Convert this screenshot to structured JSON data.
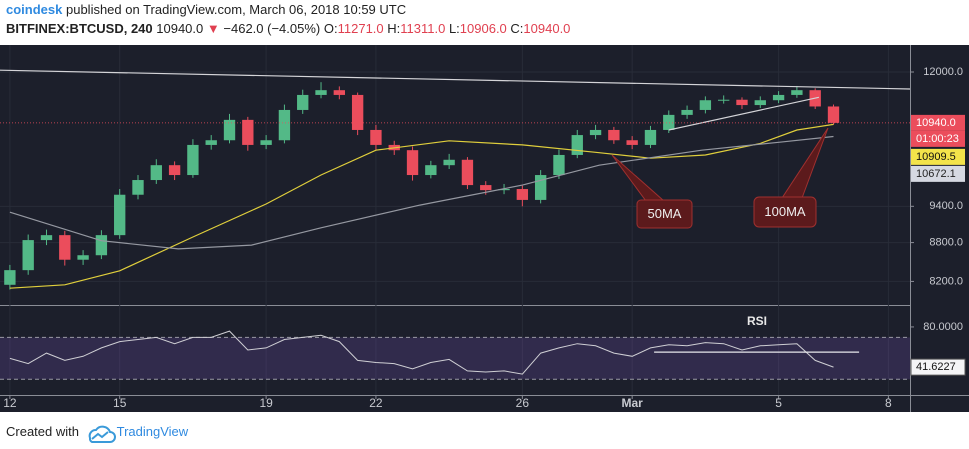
{
  "header": {
    "author": "coindesk",
    "published": "published on TradingView.com, March 06, 2018 10:59 UTC",
    "symbol": "BITFINEX:BTCUSD, 240",
    "last": "10940.0",
    "arrow": "▼",
    "change": "−462.0 (−4.05%)",
    "ohlc": [
      {
        "label": "O:",
        "value": "11271.0"
      },
      {
        "label": "H:",
        "value": "11311.0"
      },
      {
        "label": "L:",
        "value": "10906.0"
      },
      {
        "label": "C:",
        "value": "10940.0"
      }
    ]
  },
  "footer": {
    "created": "Created with",
    "brand": "TradingView"
  },
  "chart_data": [
    {
      "type": "candlestick",
      "x": [
        0,
        0.5,
        1,
        1.5,
        2,
        2.5,
        3,
        3.5,
        4,
        4.5,
        5,
        5.5,
        6,
        6.5,
        7,
        7.5,
        8,
        8.5,
        9,
        9.5,
        10,
        10.5,
        11,
        11.5,
        12,
        12.5,
        13,
        13.5,
        14,
        14.5,
        15,
        15.5,
        16,
        16.5,
        17,
        17.5,
        18,
        18.5,
        19,
        19.5,
        20,
        20.5,
        21,
        21.5,
        22,
        22.5
      ],
      "open": [
        8150,
        8370,
        8840,
        8920,
        8530,
        8600,
        8920,
        9600,
        9860,
        10130,
        9950,
        10510,
        10600,
        11000,
        10510,
        10600,
        11200,
        11510,
        11610,
        11510,
        10800,
        10510,
        10410,
        9950,
        10130,
        10230,
        9770,
        9680,
        9700,
        9510,
        9950,
        10320,
        10700,
        10800,
        10600,
        10510,
        10800,
        11100,
        11200,
        11400,
        11410,
        11300,
        11400,
        11510,
        11610,
        11271
      ],
      "high": [
        8450,
        8930,
        9010,
        8990,
        8680,
        9000,
        9700,
        9950,
        10240,
        10200,
        10620,
        10700,
        11120,
        11060,
        10700,
        11310,
        11620,
        11780,
        11690,
        11560,
        10900,
        10590,
        10480,
        10210,
        10340,
        10280,
        9840,
        9790,
        9760,
        10040,
        10420,
        10800,
        10900,
        10860,
        10680,
        10880,
        11190,
        11290,
        11480,
        11500,
        11460,
        11480,
        11590,
        11700,
        11650,
        11311
      ],
      "low": [
        8080,
        8300,
        8760,
        8440,
        8450,
        8540,
        8860,
        9520,
        9790,
        9860,
        9900,
        10420,
        10540,
        10400,
        10430,
        10540,
        11120,
        11440,
        11420,
        10700,
        10420,
        10320,
        9850,
        9890,
        10060,
        9700,
        9600,
        9610,
        9400,
        9450,
        9880,
        10260,
        10620,
        10530,
        10430,
        10450,
        10740,
        11020,
        11130,
        11330,
        11220,
        11240,
        11340,
        11450,
        11220,
        10906
      ],
      "close": [
        8370,
        8840,
        8920,
        8530,
        8600,
        8920,
        9600,
        9860,
        10130,
        9950,
        10510,
        10600,
        11000,
        10510,
        10600,
        11200,
        11510,
        11610,
        11510,
        10800,
        10510,
        10410,
        9950,
        10130,
        10230,
        9770,
        9680,
        9700,
        9510,
        9950,
        10320,
        10700,
        10800,
        10600,
        10510,
        10800,
        11100,
        11200,
        11400,
        11410,
        11300,
        11400,
        11510,
        11610,
        11271,
        10940
      ],
      "up_color": "#53b987",
      "down_color": "#eb4d5c",
      "xlim": [
        -0.27,
        24.59
      ],
      "ylim": [
        7856,
        12604
      ],
      "log_scale": true,
      "yticks": [
        {
          "value": 8200,
          "label": "8200.0"
        },
        {
          "value": 8800,
          "label": "8800.0"
        },
        {
          "value": 9400,
          "label": "9400.0"
        },
        {
          "value": 12000,
          "label": "12000.0"
        }
      ],
      "series": [
        {
          "name": "50MA",
          "color": "#e0cf3c",
          "x": [
            0,
            1.5,
            3,
            5,
            7,
            8.5,
            10,
            12,
            14,
            16,
            17.5,
            19,
            20.5,
            21.5,
            22.5
          ],
          "values": [
            8100,
            8150,
            8360,
            8890,
            9440,
            9950,
            10410,
            10590,
            10510,
            10370,
            10260,
            10320,
            10540,
            10800,
            10909.5
          ]
        },
        {
          "name": "100MA",
          "color": "#9598a1",
          "x": [
            0,
            2.5,
            4.6,
            6.6,
            8.5,
            11.2,
            14,
            16.1,
            18.9,
            21,
            22.5
          ],
          "values": [
            9300,
            8830,
            8700,
            8760,
            9040,
            9420,
            9770,
            10130,
            10410,
            10560,
            10672.1
          ]
        }
      ],
      "trendlines": [
        {
          "x": [
            -0.27,
            24.59
          ],
          "values": [
            12040,
            11635
          ]
        },
        {
          "x": [
            18.0,
            22.1
          ],
          "values": [
            10800,
            11460
          ]
        }
      ],
      "last_price": {
        "value": 10940,
        "label": "10940.0"
      },
      "countdown": "01:00:23"
    },
    {
      "type": "line",
      "title": "RSI",
      "x": [
        0,
        0.5,
        1,
        1.5,
        2,
        2.5,
        3,
        3.5,
        4,
        4.5,
        5,
        5.5,
        6,
        6.5,
        7,
        7.5,
        8,
        8.5,
        9,
        9.5,
        10,
        10.5,
        11,
        11.5,
        12,
        12.5,
        13,
        13.5,
        14,
        14.5,
        15,
        15.5,
        16,
        16.5,
        17,
        17.5,
        18,
        18.5,
        19,
        19.5,
        20,
        20.5,
        21,
        21.5,
        22,
        22.5
      ],
      "values": [
        50,
        45,
        55,
        48,
        52,
        60,
        66,
        68,
        70,
        64,
        70,
        70,
        76,
        58,
        60,
        68,
        70,
        72,
        66,
        48,
        46,
        45,
        40,
        46,
        49,
        38,
        37,
        38,
        35,
        55,
        60,
        64,
        62,
        55,
        52,
        60,
        63,
        62,
        65,
        64,
        58,
        62,
        63,
        64,
        48,
        41.6227
      ],
      "color": "#cfcfd4",
      "band_color": "#7e57c2",
      "levels": [
        30,
        70
      ],
      "xlim": [
        -0.27,
        24.59
      ],
      "ylim": [
        15,
        100
      ],
      "yticks": [
        {
          "value": 80,
          "label": "80.0000"
        }
      ],
      "xticks": [
        {
          "value": 0,
          "label": "12"
        },
        {
          "value": 3,
          "label": "15"
        },
        {
          "value": 7,
          "label": "19"
        },
        {
          "value": 10,
          "label": "22"
        },
        {
          "value": 14,
          "label": "26"
        },
        {
          "value": 17,
          "label": "Mar"
        },
        {
          "value": 21,
          "label": "5"
        },
        {
          "value": 24,
          "label": "8"
        }
      ],
      "lines": [
        {
          "x": [
            17.6,
            23.2
          ],
          "values": [
            56,
            56
          ]
        }
      ]
    }
  ]
}
